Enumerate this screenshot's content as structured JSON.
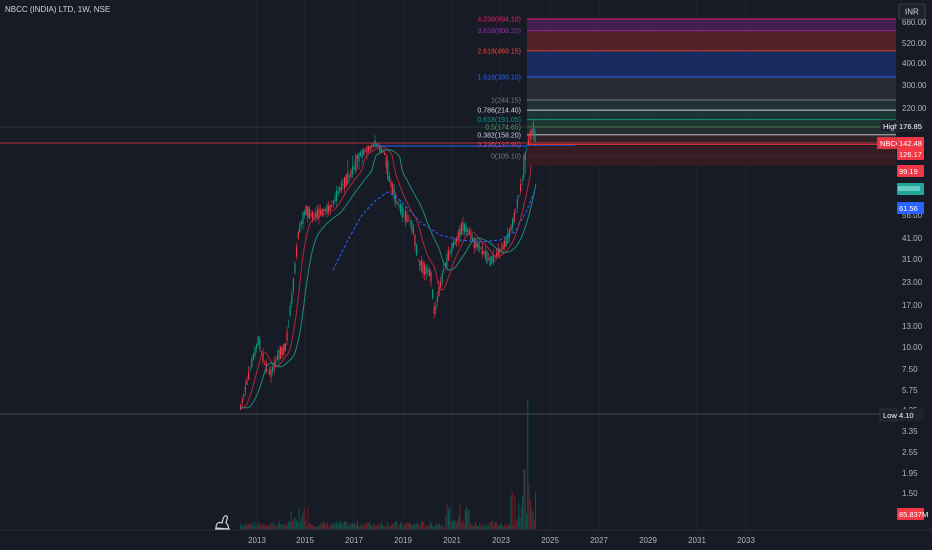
{
  "header": {
    "title": "NBCC (INDIA) LTD, 1W, NSE"
  },
  "currency_button": "INR",
  "price_axis": {
    "ticks": [
      {
        "label": "680.00",
        "v": 680
      },
      {
        "label": "520.00",
        "v": 520
      },
      {
        "label": "400.00",
        "v": 400
      },
      {
        "label": "300.00",
        "v": 300
      },
      {
        "label": "220.00",
        "v": 220
      },
      {
        "label": "56.00",
        "v": 56
      },
      {
        "label": "41.00",
        "v": 41
      },
      {
        "label": "31.00",
        "v": 31
      },
      {
        "label": "23.00",
        "v": 23
      },
      {
        "label": "17.00",
        "v": 17
      },
      {
        "label": "13.00",
        "v": 13
      },
      {
        "label": "10.00",
        "v": 10
      },
      {
        "label": "7.50",
        "v": 7.5
      },
      {
        "label": "5.75",
        "v": 5.75
      },
      {
        "label": "4.25",
        "v": 4.25
      },
      {
        "label": "3.35",
        "v": 3.35
      },
      {
        "label": "2.55",
        "v": 2.55
      },
      {
        "label": "1.95",
        "v": 1.95
      },
      {
        "label": "1.50",
        "v": 1.5
      }
    ]
  },
  "time_axis": {
    "labels": [
      "2013",
      "2015",
      "2017",
      "2019",
      "2021",
      "2023",
      "2025",
      "2027",
      "2029",
      "2031",
      "2033"
    ]
  },
  "fib_levels": [
    {
      "label": "4.236(694.10)",
      "value": 694.1,
      "color": "#e91e63",
      "fill": "#7a1f4a"
    },
    {
      "label": "3.618(608.20)",
      "value": 608.2,
      "color": "#9c27b0",
      "fill": "#4a2058"
    },
    {
      "label": "2.618(469.15)",
      "value": 469.15,
      "color": "#f44336",
      "fill": "#5a2228"
    },
    {
      "label": "1.618(330.10)",
      "value": 330.1,
      "color": "#2962ff",
      "fill": "#1a2f6b"
    },
    {
      "label": "1(244.15)",
      "value": 244.15,
      "color": "#787b86",
      "fill": "#2a2e3a"
    },
    {
      "label": "0.786(214.40)",
      "value": 214.4,
      "color": "#d1d4dc",
      "fill": "#23363a"
    },
    {
      "label": "0.618(191.05)",
      "value": 191.05,
      "color": "#089981",
      "fill": "#1c3a36"
    },
    {
      "label": "0.5(174.65)",
      "value": 174.65,
      "color": "#4caf50",
      "fill": "#1e3a30"
    },
    {
      "label": "0.382(158.20)",
      "value": 158.2,
      "color": "#d1d4dc",
      "fill": "#273031"
    },
    {
      "label": "0.236(137.90)",
      "value": 137.9,
      "color": "#f23645",
      "fill": "#3a2226"
    },
    {
      "label": "0(105.10)",
      "value": 105.1,
      "color": "#787b86",
      "fill": "#171b26"
    }
  ],
  "badges": [
    {
      "key": "high",
      "label": "High",
      "value": "176.85",
      "value_bg": "#1e222d",
      "label_bg": "#1e222d"
    },
    {
      "key": "last",
      "label": "NBCC",
      "value": "142.48",
      "value_bg": "#f23645",
      "label_bg": "#f23645"
    },
    {
      "key": "b1",
      "value": "126.17",
      "value_bg": "#f23645"
    },
    {
      "key": "b2",
      "value": "99.19",
      "value_bg": "#f23645"
    },
    {
      "key": "b3",
      "value": "",
      "value_bg": "#26a69a"
    },
    {
      "key": "b4",
      "value": "61.56",
      "value_bg": "#2962ff"
    },
    {
      "key": "low",
      "label": "Low",
      "value": "4.10",
      "value_bg": "#1e222d",
      "label_bg": "#1e222d"
    },
    {
      "key": "vol",
      "value": "85.837M",
      "value_bg": "#f23645"
    }
  ],
  "colors": {
    "up": "#089981",
    "down": "#f23645",
    "ma_red": "#b2273a",
    "ma_teal": "#1f8a7a",
    "ma_blue": "#2962ff",
    "hline_red": "#f23645"
  }
}
